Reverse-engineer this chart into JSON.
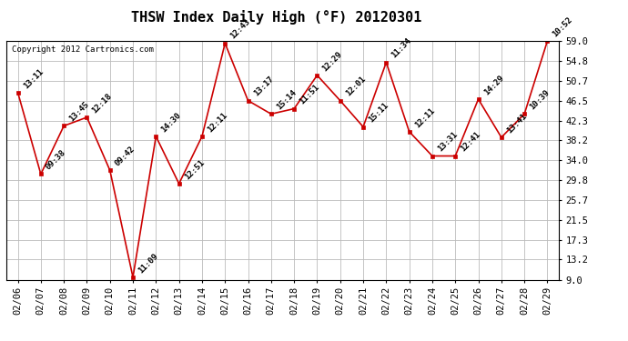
{
  "title": "THSW Index Daily High (°F) 20120301",
  "copyright": "Copyright 2012 Cartronics.com",
  "dates": [
    "02/06",
    "02/07",
    "02/08",
    "02/09",
    "02/10",
    "02/11",
    "02/12",
    "02/13",
    "02/14",
    "02/15",
    "02/16",
    "02/17",
    "02/18",
    "02/19",
    "02/20",
    "02/21",
    "02/22",
    "02/23",
    "02/24",
    "02/25",
    "02/26",
    "02/27",
    "02/28",
    "02/29"
  ],
  "values": [
    48.2,
    31.1,
    41.2,
    43.0,
    31.9,
    9.5,
    39.0,
    29.1,
    39.0,
    58.5,
    46.5,
    43.7,
    44.8,
    51.8,
    46.5,
    41.0,
    54.5,
    40.0,
    34.9,
    34.9,
    46.8,
    38.8,
    43.7,
    59.0
  ],
  "labels": [
    "13:11",
    "09:38",
    "13:45",
    "12:18",
    "09:42",
    "11:09",
    "14:30",
    "12:51",
    "12:11",
    "12:43",
    "13:17",
    "15:14",
    "11:51",
    "12:29",
    "12:01",
    "15:11",
    "11:34",
    "12:11",
    "13:31",
    "12:41",
    "14:29",
    "13:41",
    "10:39",
    "10:52"
  ],
  "ylim": [
    9.0,
    59.0
  ],
  "yticks": [
    9.0,
    13.2,
    17.3,
    21.5,
    25.7,
    29.8,
    34.0,
    38.2,
    42.3,
    46.5,
    50.7,
    54.8,
    59.0
  ],
  "line_color": "#cc0000",
  "marker_color": "#cc0000",
  "background_color": "#ffffff",
  "grid_color": "#bbbbbb",
  "title_fontsize": 11,
  "label_fontsize": 6.5,
  "tick_fontsize": 7.5,
  "copyright_fontsize": 6.5
}
